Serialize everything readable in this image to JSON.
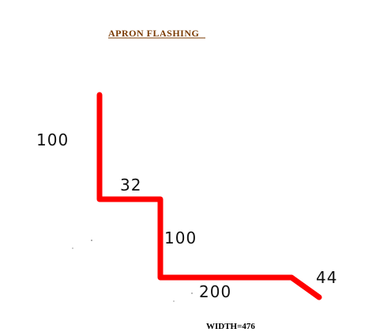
{
  "title": "APRON FLASHING",
  "segments": [
    {
      "id": "seg-1",
      "label": "100"
    },
    {
      "id": "seg-2",
      "label": "32"
    },
    {
      "id": "seg-3",
      "label": "100"
    },
    {
      "id": "seg-4",
      "label": "200"
    },
    {
      "id": "seg-5",
      "label": "44"
    }
  ],
  "width_note": "WIDTH=476",
  "colors": {
    "profile_line": "#ff0000",
    "title": "#7a3a00",
    "text": "#111111"
  }
}
